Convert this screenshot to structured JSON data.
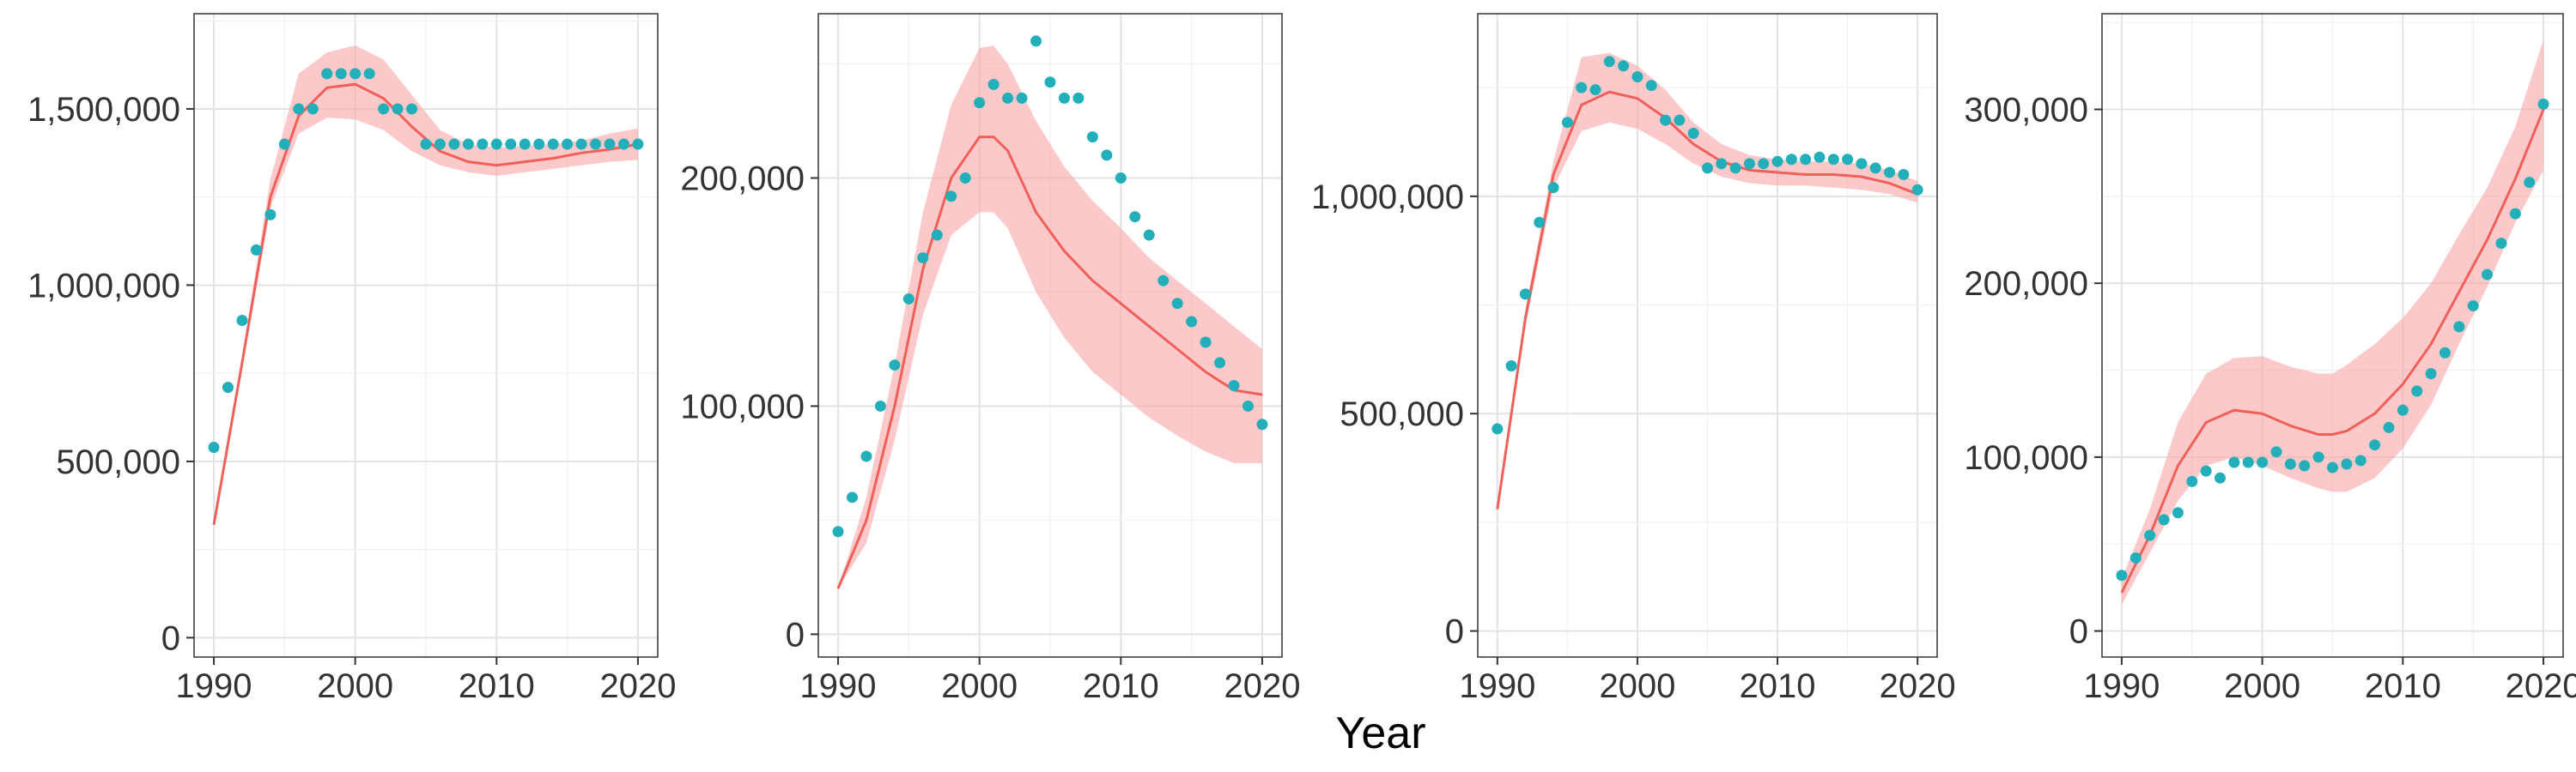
{
  "figure": {
    "xlabel": "Year"
  },
  "chart_data": [
    {
      "type": "scatter",
      "xlim": [
        1988.6,
        2021.4
      ],
      "ylim": [
        -55000,
        1770000
      ],
      "xticks": [
        1990,
        2000,
        2010,
        2020
      ],
      "xtick_labels": [
        "1990",
        "2000",
        "2010",
        "2020"
      ],
      "yticks": [
        0,
        500000,
        1000000,
        1500000
      ],
      "ytick_labels": [
        "0",
        "500,000",
        "1,000,000",
        "1,500,000"
      ],
      "grid": true,
      "colors": {
        "points": "#22AFBA",
        "line": "#F0605A",
        "band": "#F8A5A5"
      },
      "points": {
        "x": [
          1990,
          1991,
          1992,
          1993,
          1994,
          1995,
          1996,
          1997,
          1998,
          1999,
          2000,
          2001,
          2002,
          2003,
          2004,
          2005,
          2006,
          2007,
          2008,
          2009,
          2010,
          2011,
          2012,
          2013,
          2014,
          2015,
          2016,
          2017,
          2018,
          2019,
          2020
        ],
        "y": [
          540000,
          710000,
          900000,
          1100000,
          1200000,
          1400000,
          1500000,
          1500000,
          1600000,
          1600000,
          1600000,
          1600000,
          1500000,
          1500000,
          1500000,
          1400000,
          1400000,
          1400000,
          1400000,
          1400000,
          1400000,
          1400000,
          1400000,
          1400000,
          1400000,
          1400000,
          1400000,
          1400000,
          1400000,
          1400000,
          1400000
        ]
      },
      "fit": {
        "x": [
          1990,
          1992,
          1994,
          1996,
          1998,
          2000,
          2002,
          2004,
          2006,
          2008,
          2010,
          2012,
          2014,
          2016,
          2018,
          2020
        ],
        "y": [
          320000,
          780000,
          1250000,
          1480000,
          1560000,
          1570000,
          1530000,
          1450000,
          1380000,
          1350000,
          1340000,
          1350000,
          1360000,
          1375000,
          1385000,
          1400000
        ],
        "lower": [
          320000,
          760000,
          1220000,
          1430000,
          1475000,
          1470000,
          1440000,
          1380000,
          1340000,
          1320000,
          1310000,
          1320000,
          1330000,
          1340000,
          1350000,
          1355000
        ],
        "upper": [
          320000,
          800000,
          1300000,
          1600000,
          1660000,
          1680000,
          1640000,
          1540000,
          1440000,
          1400000,
          1390000,
          1395000,
          1400000,
          1410000,
          1430000,
          1445000
        ]
      }
    },
    {
      "type": "scatter",
      "xlim": [
        1988.6,
        2021.4
      ],
      "ylim": [
        -10000,
        272000
      ],
      "xticks": [
        1990,
        2000,
        2010,
        2020
      ],
      "xtick_labels": [
        "1990",
        "2000",
        "2010",
        "2020"
      ],
      "yticks": [
        0,
        100000,
        200000
      ],
      "ytick_labels": [
        "0",
        "100,000",
        "200,000"
      ],
      "grid": true,
      "colors": {
        "points": "#22AFBA",
        "line": "#F0605A",
        "band": "#F8A5A5"
      },
      "points": {
        "x": [
          1990,
          1991,
          1992,
          1993,
          1994,
          1995,
          1996,
          1997,
          1998,
          1999,
          2000,
          2001,
          2002,
          2003,
          2004,
          2005,
          2006,
          2007,
          2008,
          2009,
          2010,
          2011,
          2012,
          2013,
          2014,
          2015,
          2016,
          2017,
          2018,
          2019,
          2020
        ],
        "y": [
          45000,
          60000,
          78000,
          100000,
          118000,
          147000,
          165000,
          175000,
          192000,
          200000,
          233000,
          241000,
          235000,
          235000,
          260000,
          242000,
          235000,
          235000,
          218000,
          210000,
          200000,
          183000,
          175000,
          155000,
          145000,
          137000,
          128000,
          119000,
          109000,
          100000,
          92000
        ]
      },
      "fit": {
        "x": [
          1990,
          1992,
          1994,
          1996,
          1998,
          2000,
          2001,
          2002,
          2004,
          2006,
          2008,
          2010,
          2012,
          2014,
          2016,
          2018,
          2020
        ],
        "y": [
          20000,
          50000,
          100000,
          160000,
          200000,
          218000,
          218000,
          212000,
          185000,
          168000,
          155000,
          145000,
          135000,
          125000,
          115000,
          107000,
          105000
        ],
        "lower": [
          20000,
          40000,
          85000,
          140000,
          175000,
          185000,
          185000,
          178000,
          150000,
          130000,
          115000,
          105000,
          95000,
          87000,
          80000,
          75000,
          75000
        ],
        "upper": [
          20000,
          60000,
          118000,
          185000,
          232000,
          257000,
          258000,
          250000,
          225000,
          205000,
          190000,
          178000,
          165000,
          155000,
          145000,
          135000,
          125000
        ]
      }
    },
    {
      "type": "scatter",
      "xlim": [
        1988.6,
        2021.4
      ],
      "ylim": [
        -60000,
        1420000
      ],
      "xticks": [
        1990,
        2000,
        2010,
        2020
      ],
      "xtick_labels": [
        "1990",
        "2000",
        "2010",
        "2020"
      ],
      "yticks": [
        0,
        500000,
        1000000
      ],
      "ytick_labels": [
        "0",
        "500,000",
        "1,000,000"
      ],
      "grid": true,
      "colors": {
        "points": "#22AFBA",
        "line": "#F0605A",
        "band": "#F8A5A5"
      },
      "points": {
        "x": [
          1990,
          1991,
          1992,
          1993,
          1994,
          1995,
          1996,
          1997,
          1998,
          1999,
          2000,
          2001,
          2002,
          2003,
          2004,
          2005,
          2006,
          2007,
          2008,
          2009,
          2010,
          2011,
          2012,
          2013,
          2014,
          2015,
          2016,
          2017,
          2018,
          2019,
          2020
        ],
        "y": [
          465000,
          610000,
          775000,
          940000,
          1020000,
          1170000,
          1250000,
          1245000,
          1310000,
          1300000,
          1275000,
          1255000,
          1175000,
          1175000,
          1145000,
          1065000,
          1075000,
          1065000,
          1075000,
          1075000,
          1080000,
          1085000,
          1085000,
          1090000,
          1085000,
          1085000,
          1075000,
          1065000,
          1055000,
          1050000,
          1015000
        ]
      },
      "fit": {
        "x": [
          1990,
          1992,
          1994,
          1996,
          1998,
          2000,
          2002,
          2004,
          2006,
          2008,
          2010,
          2012,
          2014,
          2016,
          2018,
          2020
        ],
        "y": [
          280000,
          720000,
          1050000,
          1210000,
          1240000,
          1225000,
          1180000,
          1120000,
          1080000,
          1060000,
          1055000,
          1050000,
          1050000,
          1045000,
          1030000,
          1005000
        ],
        "lower": [
          280000,
          700000,
          1020000,
          1150000,
          1170000,
          1155000,
          1120000,
          1075000,
          1045000,
          1030000,
          1025000,
          1025000,
          1020000,
          1015000,
          1005000,
          985000
        ],
        "upper": [
          280000,
          740000,
          1080000,
          1320000,
          1330000,
          1300000,
          1245000,
          1170000,
          1120000,
          1095000,
          1085000,
          1080000,
          1080000,
          1075000,
          1060000,
          1035000
        ]
      }
    },
    {
      "type": "scatter",
      "xlim": [
        1988.6,
        2021.4
      ],
      "ylim": [
        -15000,
        355000
      ],
      "xticks": [
        1990,
        2000,
        2010,
        2020
      ],
      "xtick_labels": [
        "1990",
        "2000",
        "2010",
        "2020"
      ],
      "yticks": [
        0,
        100000,
        200000,
        300000
      ],
      "ytick_labels": [
        "0",
        "100,000",
        "200,000",
        "300,000"
      ],
      "grid": true,
      "colors": {
        "points": "#22AFBA",
        "line": "#F0605A",
        "band": "#F8A5A5"
      },
      "points": {
        "x": [
          1990,
          1991,
          1992,
          1993,
          1994,
          1995,
          1996,
          1997,
          1998,
          1999,
          2000,
          2001,
          2002,
          2003,
          2004,
          2005,
          2006,
          2007,
          2008,
          2009,
          2010,
          2011,
          2012,
          2013,
          2014,
          2015,
          2016,
          2017,
          2018,
          2019,
          2020
        ],
        "y": [
          32000,
          42000,
          55000,
          64000,
          68000,
          86000,
          92000,
          88000,
          97000,
          97000,
          97000,
          103000,
          96000,
          95000,
          100000,
          94000,
          96000,
          98000,
          107000,
          117000,
          127000,
          138000,
          148000,
          160000,
          175000,
          187000,
          205000,
          223000,
          240000,
          258000,
          303000
        ]
      },
      "fit": {
        "x": [
          1990,
          1992,
          1994,
          1996,
          1998,
          2000,
          2002,
          2004,
          2005,
          2006,
          2008,
          2010,
          2012,
          2014,
          2016,
          2018,
          2020
        ],
        "y": [
          22000,
          55000,
          95000,
          120000,
          127000,
          125000,
          118000,
          113000,
          113000,
          115000,
          125000,
          142000,
          165000,
          195000,
          225000,
          260000,
          300000
        ],
        "lower": [
          15000,
          45000,
          75000,
          95000,
          100000,
          95000,
          88000,
          82000,
          80000,
          80000,
          88000,
          105000,
          130000,
          165000,
          198000,
          235000,
          265000
        ],
        "upper": [
          30000,
          70000,
          120000,
          148000,
          157000,
          158000,
          152000,
          148000,
          148000,
          153000,
          165000,
          180000,
          200000,
          228000,
          255000,
          290000,
          340000
        ]
      }
    }
  ]
}
